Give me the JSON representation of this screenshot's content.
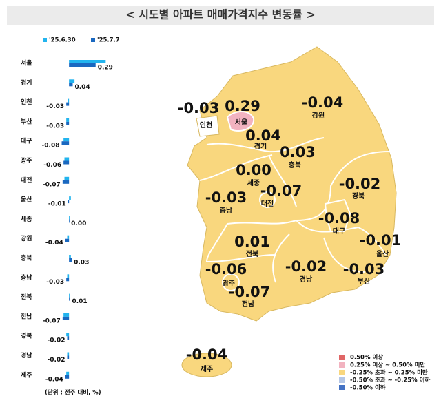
{
  "chart_data": {
    "type": "hbar",
    "title": "< 시도별 아파트 매매가격지수 변동률 >",
    "categories": [
      "서울",
      "경기",
      "인천",
      "부산",
      "대구",
      "광주",
      "대전",
      "울산",
      "세종",
      "강원",
      "충북",
      "충남",
      "전북",
      "전남",
      "경북",
      "경남",
      "제주"
    ],
    "series": [
      {
        "name": "'25.6.30",
        "color": "#22b4ee",
        "values": [
          0.4,
          0.06,
          -0.01,
          -0.03,
          -0.06,
          -0.05,
          -0.05,
          0.02,
          0.01,
          -0.02,
          0.02,
          -0.02,
          0.01,
          -0.06,
          -0.03,
          -0.02,
          -0.03
        ]
      },
      {
        "name": "'25.7.7",
        "color": "#1a68c0",
        "values": [
          0.29,
          0.04,
          -0.03,
          -0.03,
          -0.08,
          -0.06,
          -0.07,
          -0.01,
          0.0,
          -0.04,
          0.03,
          -0.03,
          0.01,
          -0.07,
          -0.02,
          -0.02,
          -0.04
        ],
        "value_labels": [
          "0.29",
          "0.04",
          "-0.03",
          "-0.03",
          "-0.08",
          "-0.06",
          "-0.07",
          "-0.01",
          "0.00",
          "-0.04",
          "0.03",
          "-0.03",
          "0.01",
          "-0.07",
          "-0.02",
          "-0.02",
          "-0.04"
        ]
      }
    ],
    "xlim": [
      -0.55,
      0.45
    ],
    "unit_note": "(단위 : 전주 대비, %)",
    "map_legend": [
      {
        "label": "0.50% 이상",
        "color": "#e06666"
      },
      {
        "label": "0.25% 이상 ~ 0.50% 미만",
        "color": "#f2b3c0"
      },
      {
        "label": "-0.25% 초과 ~ 0.25% 미만",
        "color": "#f9d77e"
      },
      {
        "label": "-0.50% 초과 ~ -0.25% 이하",
        "color": "#b4c7e7"
      },
      {
        "label": "-0.50% 이하",
        "color": "#4472c4"
      }
    ]
  }
}
